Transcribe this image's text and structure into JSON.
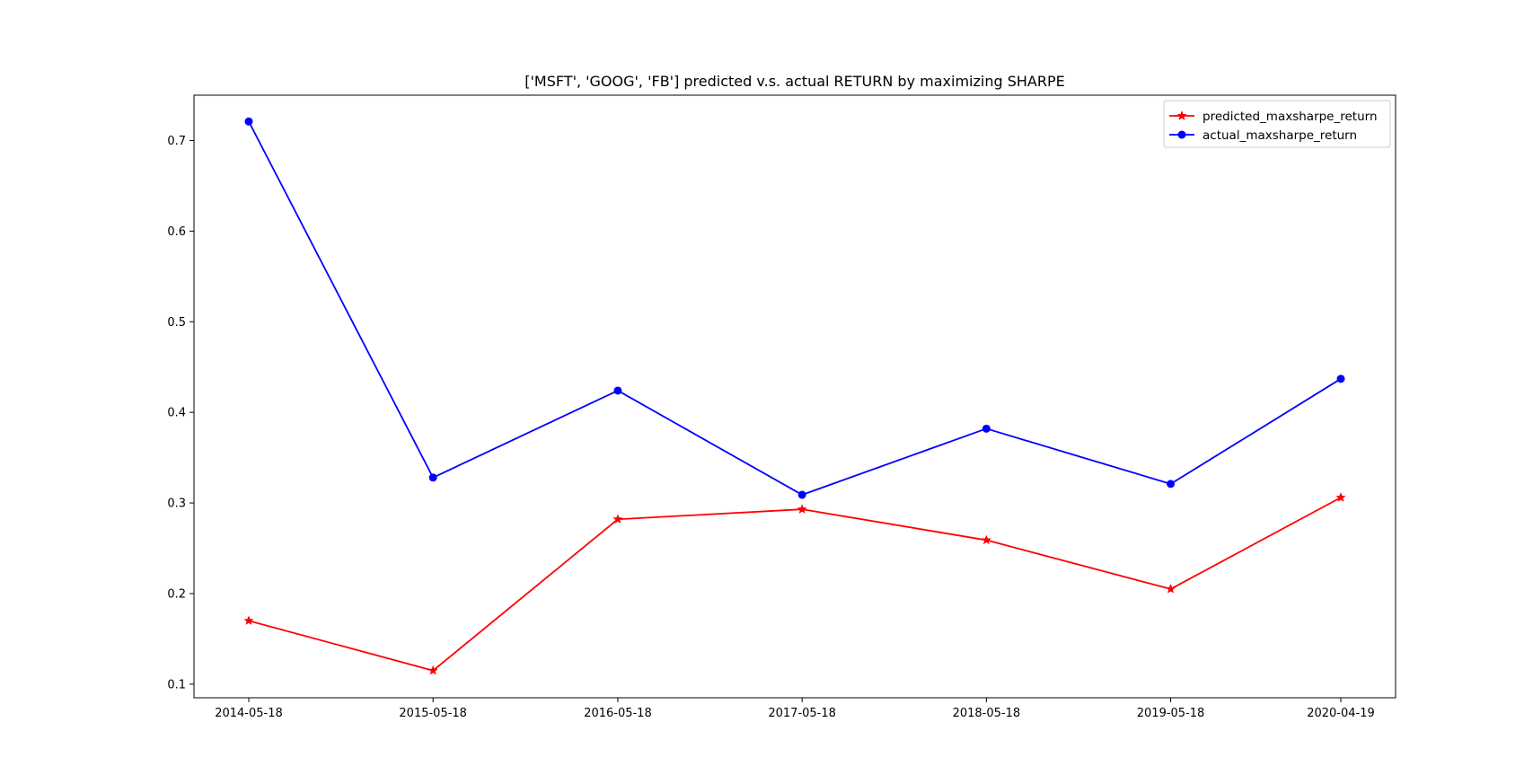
{
  "chart_data": {
    "type": "line",
    "title": "['MSFT', 'GOOG', 'FB'] predicted v.s. actual RETURN by maximizing SHARPE",
    "xlabel": "",
    "ylabel": "",
    "categories": [
      "2014-05-18",
      "2015-05-18",
      "2016-05-18",
      "2017-05-18",
      "2018-05-18",
      "2019-05-18",
      "2020-04-19"
    ],
    "x": [
      0,
      365,
      731,
      1096,
      1461,
      1826,
      2163
    ],
    "yticks": [
      0.1,
      0.2,
      0.3,
      0.4,
      0.5,
      0.6,
      0.7
    ],
    "ytick_labels": [
      "0.1",
      "0.2",
      "0.3",
      "0.4",
      "0.5",
      "0.6",
      "0.7"
    ],
    "ylim": [
      0.085,
      0.75
    ],
    "grid": false,
    "legend_position": "top-right",
    "series": [
      {
        "name": "predicted_maxsharpe_return",
        "color": "#ff0000",
        "marker": "star",
        "values": [
          0.17,
          0.115,
          0.282,
          0.293,
          0.259,
          0.205,
          0.306
        ]
      },
      {
        "name": "actual_maxsharpe_return",
        "color": "#0000ff",
        "marker": "circle",
        "values": [
          0.721,
          0.328,
          0.424,
          0.309,
          0.382,
          0.321,
          0.437
        ]
      }
    ]
  }
}
